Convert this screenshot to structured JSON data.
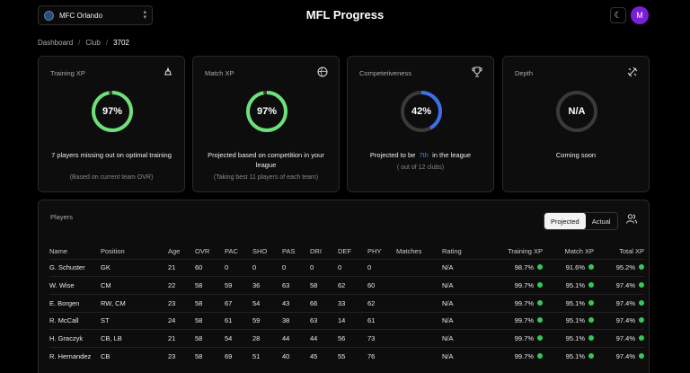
{
  "header": {
    "club_name": "MFC Orlando",
    "title": "MFL Progress",
    "theme_icon": "moon-icon",
    "avatar_initial": "M"
  },
  "breadcrumb": {
    "items": [
      "Dashboard",
      "Club",
      "3702"
    ]
  },
  "cards": [
    {
      "title": "Training XP",
      "icon": "whistle-icon",
      "value": "97%",
      "percent": 97,
      "ring_color": "#6ee07b",
      "main": "7 players missing out on optimal training",
      "sub": "(Based on current team OVR)"
    },
    {
      "title": "Match XP",
      "icon": "ball-icon",
      "value": "97%",
      "percent": 97,
      "ring_color": "#6ee07b",
      "main": "Projected based on competition in your league",
      "sub": "(Taking best 11 players of each team)"
    },
    {
      "title": "Competetiveness",
      "icon": "trophy-icon",
      "value": "42%",
      "percent": 42,
      "ring_color": "#3d6fe8",
      "main_pre": "Projected to be",
      "main_rank": "7th",
      "main_post": "in the league",
      "sub": "( out of 12 clubs)"
    },
    {
      "title": "Depth",
      "icon": "tools-icon",
      "value": "N/A",
      "percent": 0,
      "ring_color": "#555555",
      "main": "Coming soon",
      "sub": ""
    }
  ],
  "players": {
    "title": "Players",
    "toggle": [
      "Projected",
      "Actual"
    ],
    "columns": [
      "Name",
      "Position",
      "Age",
      "OVR",
      "PAC",
      "SHO",
      "PAS",
      "DRI",
      "DEF",
      "PHY",
      "Matches",
      "Rating",
      "Training XP",
      "Match XP",
      "Total XP"
    ],
    "rows": [
      [
        "G. Schuster",
        "GK",
        "21",
        "60",
        "0",
        "0",
        "0",
        "0",
        "0",
        "0",
        "",
        "N/A",
        "98.7%",
        "91.6%",
        "95.2%"
      ],
      [
        "W. Wise",
        "CM",
        "22",
        "58",
        "59",
        "36",
        "63",
        "58",
        "62",
        "60",
        "",
        "N/A",
        "99.7%",
        "95.1%",
        "97.4%"
      ],
      [
        "E. Borgen",
        "RW, CM",
        "23",
        "58",
        "67",
        "54",
        "43",
        "66",
        "33",
        "62",
        "",
        "N/A",
        "99.7%",
        "95.1%",
        "97.4%"
      ],
      [
        "R. McCall",
        "ST",
        "24",
        "58",
        "61",
        "59",
        "38",
        "63",
        "14",
        "61",
        "",
        "N/A",
        "99.7%",
        "95.1%",
        "97.4%"
      ],
      [
        "H. Graczyk",
        "CB, LB",
        "21",
        "58",
        "54",
        "28",
        "44",
        "44",
        "56",
        "73",
        "",
        "N/A",
        "99.7%",
        "95.1%",
        "97.4%"
      ],
      [
        "R. Hernandez",
        "CB",
        "23",
        "58",
        "69",
        "51",
        "40",
        "45",
        "55",
        "76",
        "",
        "N/A",
        "99.7%",
        "95.1%",
        "97.4%"
      ]
    ],
    "status_color": "#39c55a"
  }
}
